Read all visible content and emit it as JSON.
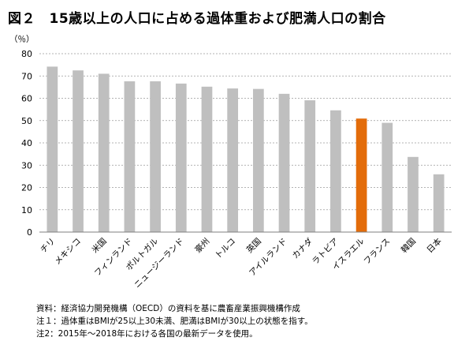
{
  "chart_data": {
    "type": "bar",
    "title": "図２　15歳以上の人口に占める過体重および肥満人口の割合",
    "ylabel": "（％）",
    "xlabel": "",
    "ylim": [
      0,
      80
    ],
    "yticks": [
      0,
      10,
      20,
      30,
      40,
      50,
      60,
      70,
      80
    ],
    "grid": true,
    "categories": [
      "チリ",
      "メキシコ",
      "米国",
      "フィンランド",
      "ポルトガル",
      "ニュージーランド",
      "豪州",
      "トルコ",
      "英国",
      "アイルランド",
      "カナダ",
      "ラトビア",
      "イスラエル",
      "フランス",
      "韓国",
      "日本"
    ],
    "values": [
      74.2,
      72.5,
      71.0,
      67.6,
      67.6,
      66.6,
      65.2,
      64.4,
      64.2,
      62.0,
      59.1,
      54.6,
      50.9,
      49.0,
      33.7,
      25.9
    ],
    "highlight_category": "イスラエル",
    "colors": {
      "bar": "#bfbfbf",
      "highlight": "#e36c0a",
      "grid": "#9a9a9a",
      "axis": "#7f7f7f"
    }
  },
  "notes": [
    "資料：経済協力開発機構（OECD）の資料を基に農畜産業振興機構作成",
    "注１：過体重はBMIが25以上30未満、肥満はBMIが30以上の状態を指す。",
    "注2：2015年～2018年における各国の最新データを使用。"
  ]
}
